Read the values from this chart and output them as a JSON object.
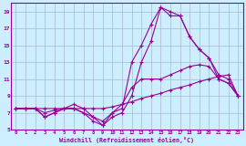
{
  "xlabel": "Windchill (Refroidissement éolien,°C)",
  "bg_color": "#cceeff",
  "line_color": "#990099",
  "grid_color": "#aabbcc",
  "xlim": [
    -0.5,
    23.5
  ],
  "ylim": [
    5,
    20
  ],
  "xticks": [
    0,
    1,
    2,
    3,
    4,
    5,
    6,
    7,
    8,
    9,
    10,
    11,
    12,
    13,
    14,
    15,
    16,
    17,
    18,
    19,
    20,
    21,
    22,
    23
  ],
  "yticks": [
    5,
    7,
    9,
    11,
    13,
    15,
    17,
    19
  ],
  "series": [
    {
      "x": [
        0,
        1,
        2,
        3,
        4,
        5,
        6,
        7,
        8,
        9,
        10,
        11,
        12,
        13,
        14,
        15,
        16,
        17,
        18,
        19,
        20,
        21,
        22,
        23
      ],
      "y": [
        7.5,
        7.5,
        7.5,
        7.5,
        7.5,
        7.5,
        7.5,
        7.5,
        7.5,
        7.5,
        7.7,
        8.0,
        8.3,
        8.7,
        9.0,
        9.3,
        9.7,
        10.0,
        10.3,
        10.7,
        11.0,
        11.3,
        11.5,
        9.0
      ]
    },
    {
      "x": [
        0,
        1,
        2,
        3,
        4,
        5,
        6,
        7,
        8,
        9,
        10,
        11,
        12,
        13,
        14,
        15,
        16,
        17,
        18,
        19,
        20,
        21,
        22,
        23
      ],
      "y": [
        7.5,
        7.5,
        7.5,
        7.0,
        7.3,
        7.5,
        7.5,
        7.0,
        6.5,
        6.0,
        7.0,
        8.0,
        10.0,
        11.0,
        11.0,
        11.0,
        11.5,
        12.0,
        12.5,
        12.7,
        12.5,
        11.0,
        10.5,
        9.0
      ]
    },
    {
      "x": [
        0,
        1,
        2,
        3,
        4,
        5,
        6,
        7,
        8,
        9,
        10,
        11,
        12,
        13,
        14,
        15,
        16,
        17,
        18,
        19,
        20,
        21,
        22,
        23
      ],
      "y": [
        7.5,
        7.5,
        7.5,
        6.5,
        7.0,
        7.5,
        7.5,
        7.0,
        6.0,
        5.5,
        6.5,
        7.0,
        9.0,
        13.0,
        15.5,
        19.5,
        19.0,
        18.5,
        16.0,
        14.5,
        13.5,
        11.0,
        10.5,
        9.0
      ]
    },
    {
      "x": [
        0,
        1,
        2,
        3,
        4,
        5,
        6,
        7,
        8,
        9,
        10,
        11,
        12,
        13,
        14,
        15,
        16,
        17,
        18,
        19,
        20,
        21,
        22,
        23
      ],
      "y": [
        7.5,
        7.5,
        7.5,
        6.5,
        7.0,
        7.5,
        8.0,
        7.5,
        6.5,
        5.5,
        7.0,
        7.5,
        13.0,
        15.0,
        17.5,
        19.5,
        18.5,
        18.5,
        16.0,
        14.5,
        13.5,
        11.5,
        11.0,
        9.0
      ]
    }
  ]
}
